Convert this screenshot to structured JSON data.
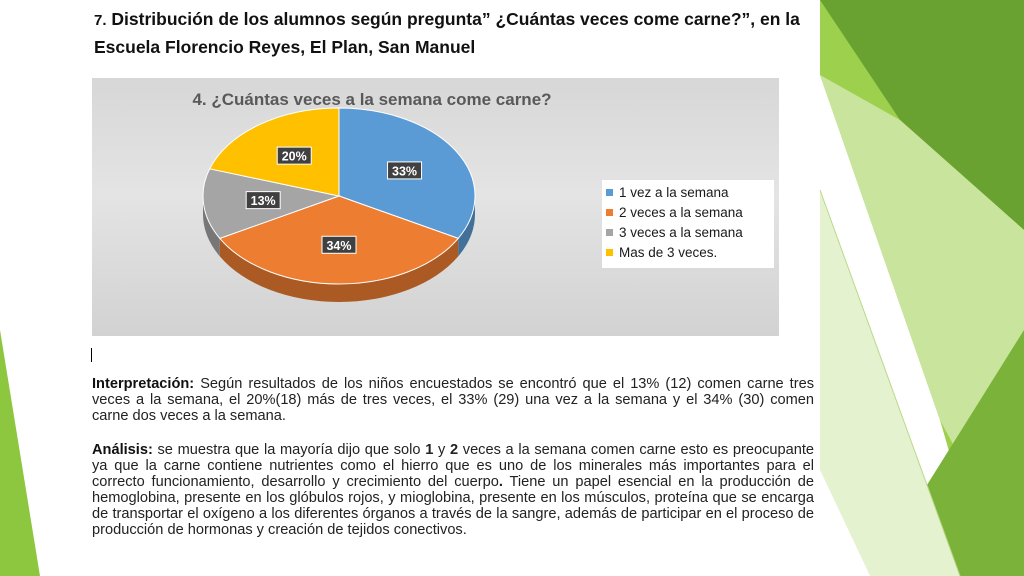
{
  "slide": {
    "heading_number": "7.",
    "heading_text": "Distribución de los alumnos según pregunta” ¿Cuántas veces come carne?”, en la Escuela Florencio Reyes, El Plan, San Manuel"
  },
  "chart_data": {
    "type": "pie",
    "title": "4. ¿Cuántas veces a la semana come carne?",
    "categories": [
      "1 vez a la semana",
      "2 veces a la semana",
      "3 veces a la semana",
      "Mas de 3 veces."
    ],
    "values": [
      33,
      34,
      13,
      20
    ],
    "unit": "%",
    "data_labels": [
      "33%",
      "34%",
      "13%",
      "20%"
    ],
    "colors": [
      "#5b9bd5",
      "#ed7d31",
      "#a5a5a5",
      "#ffc000"
    ],
    "legend_position": "right",
    "style": "3d-pie"
  },
  "interpretacion": {
    "label": "Interpretación:",
    "text": "Según resultados de los niños encuestados se encontró que el 13% (12) comen carne tres veces a la semana, el 20%(18) más de tres veces, el 33% (29) una vez a la semana y el 34% (30) comen carne dos veces a la semana."
  },
  "analisis": {
    "label": "Análisis:",
    "t1": "se muestra que la mayoría dijo  que solo",
    "b1": "1",
    "t2": "y",
    "b2": "2",
    "t3": "veces a la semana comen carne esto es preocupante ya que la carne contiene nutrientes como el hierro que es uno de los minerales más importantes para el correcto funcionamiento, desarrollo y crecimiento del cuerpo",
    "b3": ".",
    "t4": "Tiene un papel esencial en la producción de hemoglobina, presente en los glóbulos rojos, y mioglobina, presente en los músculos, proteína que se encarga de transportar el oxígeno a los diferentes órganos a través de la sangre, además de participar en el proceso de producción de hormonas y creación de tejidos conectivos."
  }
}
